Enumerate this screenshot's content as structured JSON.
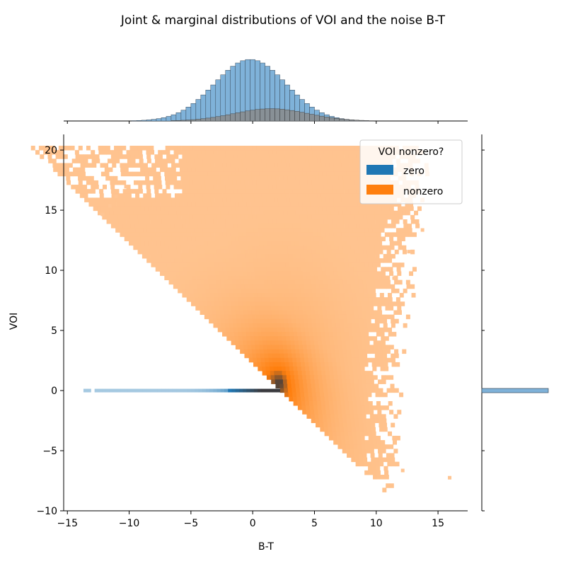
{
  "chart_data": {
    "type": "heatmap",
    "title": "Joint & marginal distributions of VOI and the noise B-T",
    "xlabel": "B-T",
    "ylabel": "VOI",
    "xlim": [
      -15.3,
      17.4
    ],
    "ylim": [
      -10.0,
      21.3
    ],
    "xticks": [
      -15,
      -10,
      -5,
      0,
      5,
      10,
      15
    ],
    "yticks": [
      -10,
      -5,
      0,
      5,
      10,
      15,
      20
    ],
    "xtick_labels": [
      "−15",
      "−10",
      "−5",
      "0",
      "5",
      "10",
      "15"
    ],
    "ytick_labels": [
      "−10",
      "−5",
      "0",
      "5",
      "10",
      "15",
      "20"
    ],
    "grid": false,
    "legend": {
      "title": "VOI nonzero?",
      "placement": "top-right",
      "entries": [
        {
          "label": "zero",
          "color": "#1f77b4"
        },
        {
          "label": "nonzero",
          "color": "#ff7f0e"
        }
      ]
    },
    "series": [
      {
        "name": "zero",
        "color": "#1f77b4",
        "description_of_shape": "all points at VOI = 0",
        "voi_value": 0,
        "bt_range": [
          -13.7,
          2.0
        ],
        "marginal_bt_mean": -0.2,
        "marginal_bt_sd": 2.9,
        "marginal_bt_peak_count": 1.0
      },
      {
        "name": "nonzero",
        "color": "#ff7f0e",
        "lower_boundary": "VOI >= 2 - B-T",
        "voi_upper_cap": 20,
        "voi_lower_limit": -8.5,
        "bt_range": [
          -12.3,
          15.8
        ],
        "dense_core": {
          "bt": 2.0,
          "voi": 0.5
        },
        "marginal_bt_mean": 1.5,
        "marginal_bt_sd": 3.0,
        "marginal_bt_peak_count": 0.2
      }
    ],
    "colors": {
      "zero_fill": "#1f77b4",
      "nonzero_fill": "#ff7f0e",
      "marginal_fill": "#7fb2d9",
      "marginal_overlap": "#8a8a8a"
    }
  }
}
